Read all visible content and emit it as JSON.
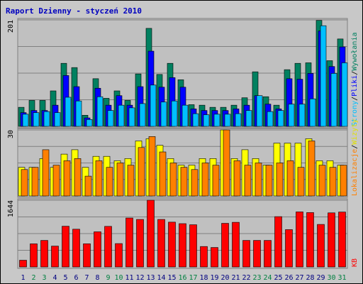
{
  "chart_data": [
    {
      "type": "bar",
      "title": "Raport Dzienny -  styczeń 2010",
      "legend_separator": "/",
      "ylim": [
        0,
        201
      ],
      "yticks": [
        201
      ],
      "grid": true,
      "series": [
        {
          "name": "Wywołania",
          "color": "#008060",
          "values": [
            36,
            49,
            49,
            67,
            119,
            111,
            21,
            90,
            53,
            67,
            49,
            99,
            185,
            98,
            119,
            88,
            41,
            40,
            36,
            36,
            40,
            54,
            103,
            56,
            40,
            107,
            119,
            120,
            200,
            124,
            165
          ]
        },
        {
          "name": "Pliki",
          "color": "#0000ff",
          "values": [
            26,
            30,
            30,
            40,
            96,
            75,
            16,
            72,
            40,
            58,
            40,
            75,
            142,
            74,
            92,
            74,
            33,
            30,
            30,
            30,
            33,
            40,
            58,
            42,
            33,
            90,
            89,
            100,
            180,
            113,
            150
          ]
        },
        {
          "name": "Strony",
          "color": "#00bfff",
          "values": [
            23,
            26,
            28,
            26,
            55,
            48,
            13,
            56,
            30,
            40,
            35,
            43,
            78,
            46,
            48,
            40,
            24,
            22,
            23,
            23,
            24,
            30,
            58,
            28,
            30,
            42,
            42,
            52,
            190,
            100,
            120
          ]
        }
      ]
    },
    {
      "type": "bar",
      "legend_separator": "/",
      "ylim": [
        0,
        30
      ],
      "yticks": [
        30
      ],
      "grid": true,
      "series": [
        {
          "name": "Wizyty",
          "color": "#ffff00",
          "values": [
            13,
            13,
            17,
            13,
            19,
            21,
            13,
            18,
            18,
            16,
            17,
            25,
            26,
            23,
            17,
            14,
            14,
            17,
            17,
            30,
            17,
            21,
            17,
            14,
            24,
            24,
            24,
            26,
            16,
            16,
            14
          ]
        },
        {
          "name": "Lokalizacje",
          "color": "#ff8000",
          "values": [
            12,
            13,
            21,
            14,
            16,
            17,
            9,
            16,
            13,
            15,
            14,
            22,
            27,
            20,
            15,
            13,
            12,
            15,
            14,
            30,
            16,
            14,
            15,
            14,
            15,
            16,
            13,
            25,
            14,
            13,
            14
          ]
        }
      ]
    },
    {
      "type": "bar",
      "ylim": [
        0,
        1644
      ],
      "yticks": [
        1644
      ],
      "grid": true,
      "categories": [
        "1",
        "2",
        "3",
        "4",
        "5",
        "6",
        "7",
        "8",
        "9",
        "10",
        "11",
        "12",
        "13",
        "14",
        "15",
        "16",
        "17",
        "18",
        "19",
        "20",
        "21",
        "22",
        "23",
        "24",
        "25",
        "26",
        "27",
        "28",
        "29",
        "30",
        "31"
      ],
      "category_colors": [
        "#000080",
        "#008040",
        "#008040",
        "#000080",
        "#000080",
        "#000080",
        "#000080",
        "#000080",
        "#008040",
        "#008040",
        "#000080",
        "#000080",
        "#000080",
        "#000080",
        "#000080",
        "#008040",
        "#008040",
        "#000080",
        "#000080",
        "#000080",
        "#000080",
        "#000080",
        "#008040",
        "#008040",
        "#000080",
        "#000080",
        "#000080",
        "#000080",
        "#000080",
        "#008040",
        "#008040"
      ],
      "series": [
        {
          "name": "KB",
          "color": "#ff0000",
          "values": [
            166,
            570,
            654,
            514,
            1004,
            930,
            571,
            866,
            1000,
            576,
            1206,
            1171,
            1644,
            1171,
            1104,
            1067,
            1040,
            504,
            480,
            1075,
            1100,
            654,
            654,
            654,
            1240,
            920,
            1357,
            1340,
            1048,
            1333,
            1353
          ]
        }
      ]
    }
  ]
}
